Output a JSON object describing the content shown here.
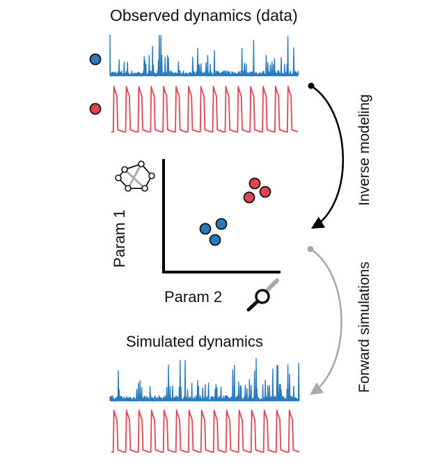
{
  "labels": {
    "observed_title": "Observed dynamics (data)",
    "simulated_title": "Simulated dynamics",
    "param1": "Param 1",
    "param2": "Param 2",
    "inverse_modeling": "Inverse modeling",
    "forward_simulations": "Forward simulations"
  },
  "colors": {
    "blue": "#2a7bbd",
    "red": "#e04452",
    "black": "#000000",
    "gray": "#a9a9a9"
  },
  "icons": [
    "network-graph-icon",
    "search-magnifier-icon",
    "blue-dot-icon",
    "red-dot-icon"
  ]
}
